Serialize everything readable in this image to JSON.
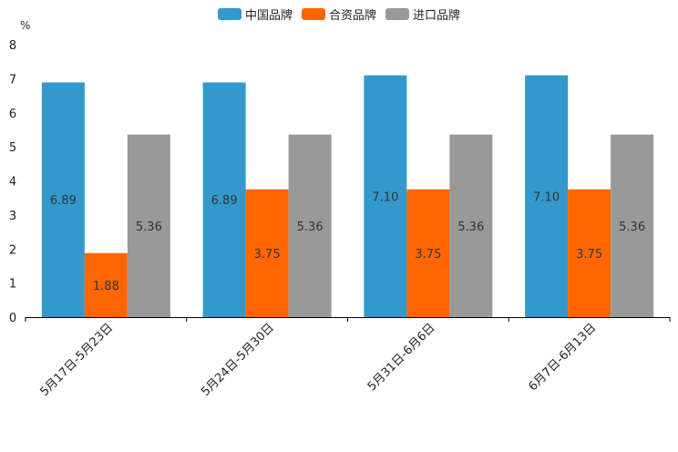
{
  "chart_data": {
    "type": "bar",
    "title": "",
    "unit_label": "%",
    "xlabel": "",
    "ylabel": "%",
    "ylim": [
      0,
      8
    ],
    "yticks": [
      0,
      1,
      2,
      3,
      4,
      5,
      6,
      7,
      8
    ],
    "grid": false,
    "legend_position": "top-center",
    "categories": [
      "5月17日-5月23日",
      "5月24日-5月30日",
      "5月31日-6月6日",
      "6月7日-6月13日"
    ],
    "series": [
      {
        "name": "中国品牌",
        "color": "#3399cc",
        "values": [
          6.89,
          6.89,
          7.1,
          7.1
        ],
        "labels": [
          "6.89",
          "6.89",
          "7.10",
          "7.10"
        ]
      },
      {
        "name": "合资品牌",
        "color": "#ff6600",
        "values": [
          1.88,
          3.75,
          3.75,
          3.75
        ],
        "labels": [
          "1.88",
          "3.75",
          "3.75",
          "3.75"
        ]
      },
      {
        "name": "进口品牌",
        "color": "#999999",
        "values": [
          5.36,
          5.36,
          5.36,
          5.36
        ],
        "labels": [
          "5.36",
          "5.36",
          "5.36",
          "5.36"
        ]
      }
    ]
  }
}
